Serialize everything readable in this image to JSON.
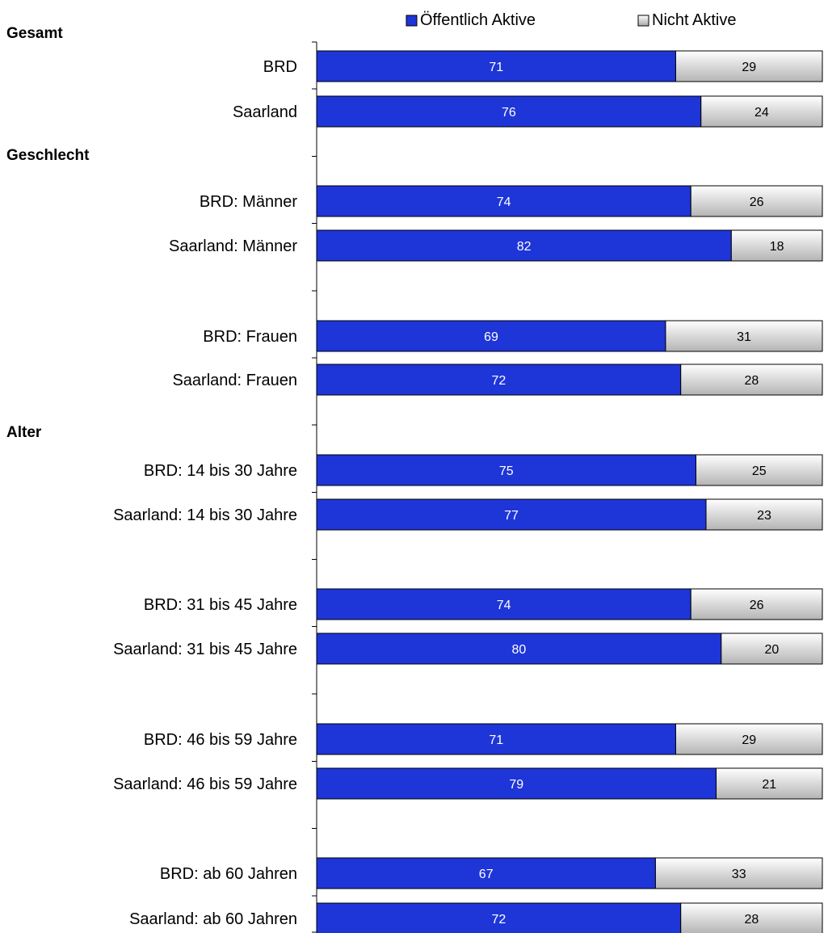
{
  "colors": {
    "active": "#1e35d8",
    "inactive_light": "#ffffff",
    "inactive_dark": "#b4b4b4"
  },
  "chart_data": {
    "type": "bar",
    "stacked": true,
    "orientation": "horizontal",
    "units": "percent",
    "xlim": [
      0,
      100
    ],
    "series": [
      {
        "name": "Öffentlich Aktive",
        "color": "#1e35d8"
      },
      {
        "name": "Nicht Aktive",
        "color": "#d8d8d8"
      }
    ],
    "legend_position": "top",
    "sections": [
      {
        "title": "Gesamt",
        "rows": [
          {
            "label": "BRD",
            "values": [
              71,
              29
            ]
          },
          {
            "label": "Saarland",
            "values": [
              76,
              24
            ]
          }
        ]
      },
      {
        "title": "Geschlecht",
        "rows": [
          {
            "label": "BRD: Männer",
            "values": [
              74,
              26
            ]
          },
          {
            "label": "Saarland: Männer",
            "values": [
              82,
              18
            ]
          },
          {
            "label": "BRD: Frauen",
            "values": [
              69,
              31
            ]
          },
          {
            "label": "Saarland: Frauen",
            "values": [
              72,
              28
            ]
          }
        ]
      },
      {
        "title": "Alter",
        "rows": [
          {
            "label": "BRD: 14 bis 30 Jahre",
            "values": [
              75,
              25
            ]
          },
          {
            "label": "Saarland: 14 bis 30 Jahre",
            "values": [
              77,
              23
            ]
          },
          {
            "label": "BRD: 31 bis 45 Jahre",
            "values": [
              74,
              26
            ]
          },
          {
            "label": "Saarland: 31 bis 45 Jahre",
            "values": [
              80,
              20
            ]
          },
          {
            "label": "BRD: 46 bis 59 Jahre",
            "values": [
              71,
              29
            ]
          },
          {
            "label": "Saarland: 46 bis 59 Jahre",
            "values": [
              79,
              21
            ]
          },
          {
            "label": "BRD: ab 60 Jahren",
            "values": [
              67,
              33
            ]
          },
          {
            "label": "Saarland: ab 60 Jahren",
            "values": [
              72,
              28
            ]
          }
        ]
      }
    ]
  }
}
